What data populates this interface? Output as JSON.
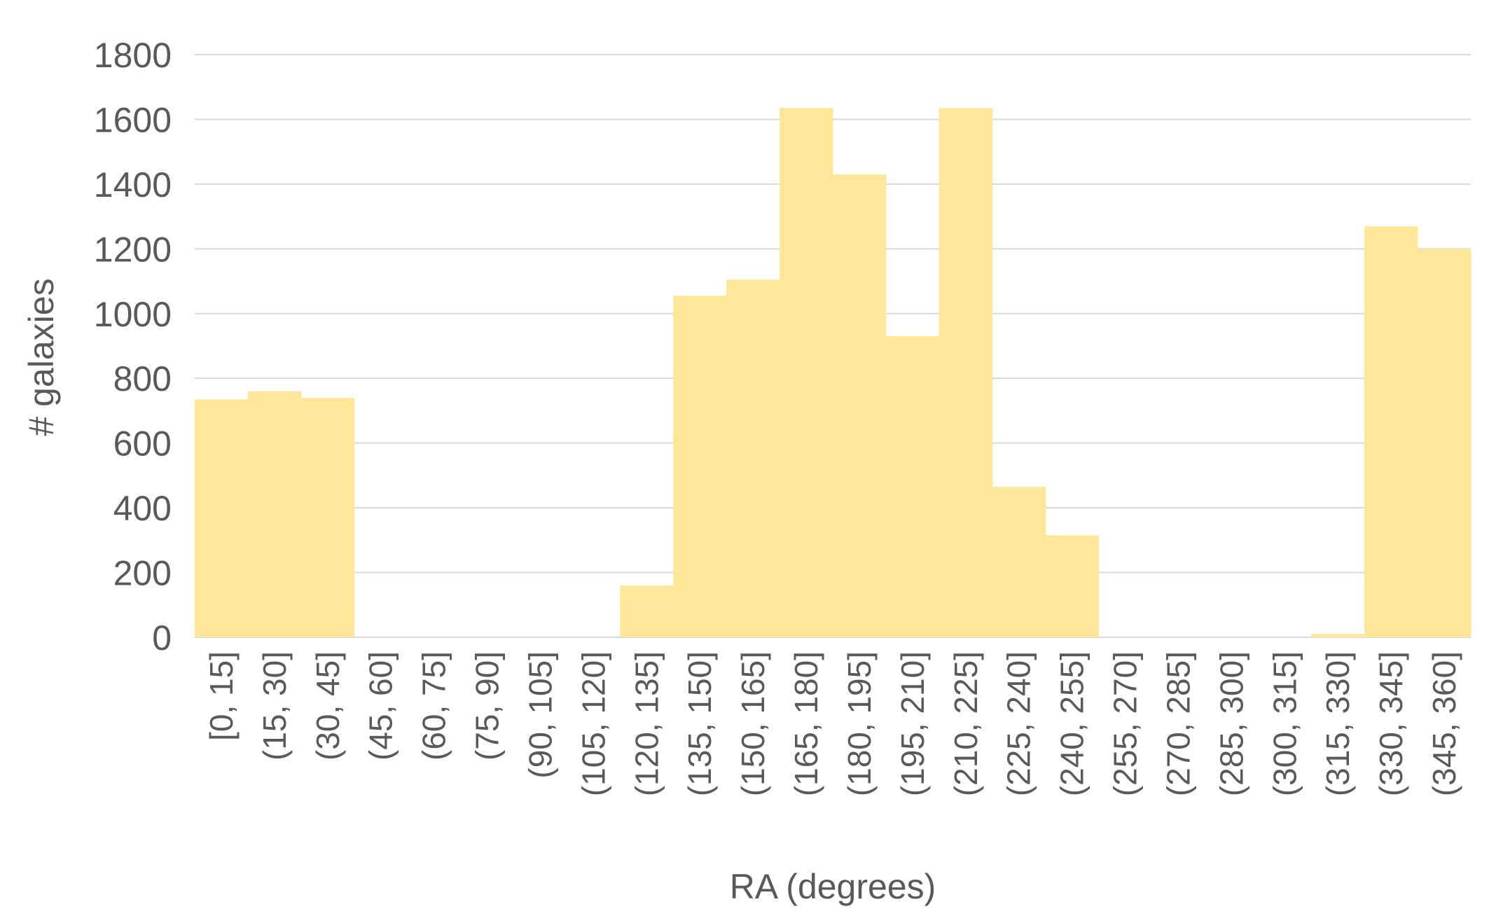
{
  "chart_data": {
    "type": "bar",
    "title": "",
    "xlabel": "RA (degrees)",
    "ylabel": "# galaxies",
    "ylim": [
      0,
      1800
    ],
    "yticks": [
      0,
      200,
      400,
      600,
      800,
      1000,
      1200,
      1400,
      1600,
      1800
    ],
    "grid": true,
    "legend": "none",
    "bar_color": "#ffe699",
    "grid_color": "#d9d9d9",
    "text_color": "#595959",
    "categories": [
      "[0, 15]",
      "(15, 30]",
      "(30, 45]",
      "(45, 60]",
      "(60, 75]",
      "(75, 90]",
      "(90, 105]",
      "(105, 120]",
      "(120, 135]",
      "(135, 150]",
      "(150, 165]",
      "(165, 180]",
      "(180, 195]",
      "(195, 210]",
      "(210, 225]",
      "(225, 240]",
      "(240, 255]",
      "(255, 270]",
      "(270, 285]",
      "(285, 300]",
      "(300, 315]",
      "(315, 330]",
      "(330, 345]",
      "(345, 360]"
    ],
    "values": [
      735,
      760,
      740,
      0,
      0,
      0,
      0,
      0,
      160,
      1055,
      1105,
      1635,
      1430,
      930,
      1635,
      465,
      315,
      0,
      0,
      0,
      0,
      10,
      1270,
      1200
    ]
  }
}
